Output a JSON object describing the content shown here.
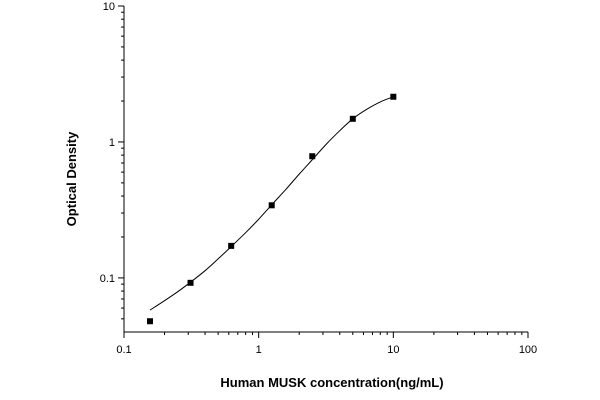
{
  "chart_data": {
    "type": "scatter",
    "title": "",
    "xlabel": "Human MUSK concentration(ng/mL)",
    "ylabel": "Optical Density",
    "xscale": "log",
    "yscale": "log",
    "xlim": [
      0.1,
      100
    ],
    "ylim": [
      0.04,
      10
    ],
    "grid": false,
    "x_ticks": [
      0.1,
      1,
      10,
      100
    ],
    "x_tick_labels": [
      "0.1",
      "1",
      "10",
      "100"
    ],
    "y_ticks": [
      0.1,
      1,
      10
    ],
    "y_tick_labels": [
      "0.1",
      "1",
      "10"
    ],
    "series": [
      {
        "kind": "points",
        "marker": "square",
        "color": "#000000",
        "x": [
          0.156,
          0.312,
          0.625,
          1.25,
          2.5,
          5,
          10
        ],
        "y": [
          0.048,
          0.092,
          0.172,
          0.342,
          0.785,
          1.48,
          2.15
        ]
      },
      {
        "kind": "fit-curve",
        "color": "#000000",
        "x": [
          0.156,
          0.2,
          0.25,
          0.312,
          0.4,
          0.5,
          0.625,
          0.8,
          1.0,
          1.25,
          1.6,
          2.0,
          2.5,
          3.2,
          4.0,
          5.0,
          6.3,
          8.0,
          10
        ],
        "y": [
          0.058,
          0.068,
          0.079,
          0.093,
          0.113,
          0.138,
          0.17,
          0.215,
          0.27,
          0.345,
          0.45,
          0.58,
          0.74,
          0.97,
          1.21,
          1.48,
          1.73,
          1.97,
          2.15
        ]
      }
    ]
  }
}
